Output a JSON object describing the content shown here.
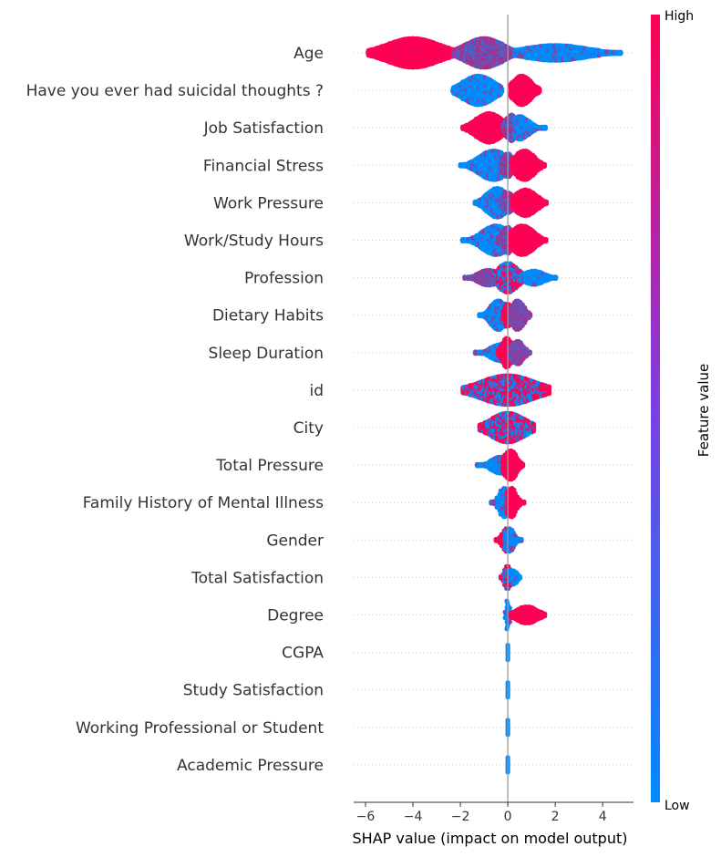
{
  "chart_data": {
    "type": "scatter",
    "subtype": "shap-beeswarm",
    "xlabel": "SHAP value (impact on model output)",
    "xlim": [
      -6.5,
      5.3
    ],
    "xticks": [
      -6,
      -4,
      -2,
      0,
      2,
      4
    ],
    "xtick_labels": [
      "−6",
      "−4",
      "−2",
      "0",
      "2",
      "4"
    ],
    "colorbar": {
      "title": "Feature value",
      "high_label": "High",
      "low_label": "Low",
      "low_color": "#008bfb",
      "high_color": "#ff0052"
    },
    "features": [
      {
        "name": "Age",
        "min": -5.9,
        "max": 4.8,
        "bands": [
          {
            "x0": -5.9,
            "x1": -2.3,
            "c": "high",
            "v": [
              -4.0,
              1.0
            ]
          },
          {
            "x0": -2.3,
            "x1": 0.3,
            "c": "mid",
            "v": [
              -1.0,
              1.0
            ]
          },
          {
            "x0": 0.3,
            "x1": 4.8,
            "c": "low",
            "v": [
              2.0,
              0.55
            ]
          }
        ]
      },
      {
        "name": "Have you ever had suicidal thoughts ?",
        "min": -2.3,
        "max": 1.4,
        "bands": [
          {
            "x0": -2.3,
            "x1": -0.2,
            "c": "low",
            "v": [
              -1.25,
              1.0
            ]
          },
          {
            "x0": 0.1,
            "x1": 1.4,
            "c": "high",
            "v": [
              0.6,
              1.0
            ]
          }
        ]
      },
      {
        "name": "Job Satisfaction",
        "min": -1.9,
        "max": 1.6,
        "bands": [
          {
            "x0": -1.9,
            "x1": -0.1,
            "c": "high",
            "v": [
              -0.8,
              1.0
            ]
          },
          {
            "x0": -0.2,
            "x1": 0.6,
            "c": "mid",
            "v": [
              0.15,
              0.9
            ]
          },
          {
            "x0": 0.3,
            "x1": 1.6,
            "c": "low",
            "v": [
              0.5,
              0.8
            ]
          }
        ]
      },
      {
        "name": "Financial Stress",
        "min": -2.0,
        "max": 1.6,
        "bands": [
          {
            "x0": -2.0,
            "x1": 0.0,
            "c": "low",
            "v": [
              -0.6,
              1.0
            ]
          },
          {
            "x0": -0.3,
            "x1": 0.5,
            "c": "mid",
            "v": [
              0.0,
              0.8
            ]
          },
          {
            "x0": 0.2,
            "x1": 1.6,
            "c": "high",
            "v": [
              0.7,
              1.0
            ]
          }
        ]
      },
      {
        "name": "Work Pressure",
        "min": -1.4,
        "max": 1.7,
        "bands": [
          {
            "x0": -1.4,
            "x1": 0.1,
            "c": "low",
            "v": [
              -0.45,
              1.0
            ]
          },
          {
            "x0": -0.3,
            "x1": 0.5,
            "c": "mid",
            "v": [
              0.0,
              0.7
            ]
          },
          {
            "x0": 0.2,
            "x1": 1.7,
            "c": "high",
            "v": [
              0.75,
              0.9
            ]
          }
        ]
      },
      {
        "name": "Work/Study Hours",
        "min": -1.9,
        "max": 1.7,
        "bands": [
          {
            "x0": -1.9,
            "x1": 0.0,
            "c": "low",
            "v": [
              -0.5,
              1.0
            ]
          },
          {
            "x0": -0.4,
            "x1": 0.4,
            "c": "mid",
            "v": [
              0.0,
              0.9
            ]
          },
          {
            "x0": 0.1,
            "x1": 1.7,
            "c": "high",
            "v": [
              0.6,
              1.0
            ]
          }
        ]
      },
      {
        "name": "Profession",
        "min": -1.8,
        "max": 2.1,
        "bands": [
          {
            "x0": -1.8,
            "x1": -0.3,
            "c": "purple",
            "v": [
              -0.8,
              0.55
            ]
          },
          {
            "x0": -0.6,
            "x1": 0.8,
            "c": "mix",
            "v": [
              0.0,
              1.0
            ]
          },
          {
            "x0": 0.6,
            "x1": 2.1,
            "c": "low",
            "v": [
              1.1,
              0.5
            ]
          }
        ]
      },
      {
        "name": "Dietary Habits",
        "min": -1.2,
        "max": 1.0,
        "bands": [
          {
            "x0": -1.2,
            "x1": -0.1,
            "c": "low",
            "v": [
              -0.4,
              1.0
            ]
          },
          {
            "x0": -0.2,
            "x1": 0.3,
            "c": "high",
            "v": [
              0.0,
              0.8
            ]
          },
          {
            "x0": 0.1,
            "x1": 1.0,
            "c": "purple",
            "v": [
              0.4,
              1.0
            ]
          }
        ]
      },
      {
        "name": "Sleep Duration",
        "min": -1.4,
        "max": 1.0,
        "bands": [
          {
            "x0": -1.4,
            "x1": 0.0,
            "c": "low",
            "v": [
              -0.3,
              0.6
            ]
          },
          {
            "x0": -0.4,
            "x1": 0.3,
            "c": "high",
            "v": [
              -0.05,
              1.0
            ]
          },
          {
            "x0": 0.1,
            "x1": 1.0,
            "c": "purple",
            "v": [
              0.4,
              0.8
            ]
          }
        ]
      },
      {
        "name": "id",
        "min": -1.9,
        "max": 1.8,
        "bands": [
          {
            "x0": -1.9,
            "x1": 1.8,
            "c": "mix",
            "v": [
              0.0,
              1.0
            ]
          }
        ]
      },
      {
        "name": "City",
        "min": -1.2,
        "max": 1.1,
        "bands": [
          {
            "x0": -1.2,
            "x1": 1.1,
            "c": "mix",
            "v": [
              0.0,
              1.0
            ]
          }
        ]
      },
      {
        "name": "Total Pressure",
        "min": -1.3,
        "max": 0.7,
        "bands": [
          {
            "x0": -1.3,
            "x1": 0.0,
            "c": "low",
            "v": [
              -0.3,
              0.6
            ]
          },
          {
            "x0": -0.2,
            "x1": 0.7,
            "c": "high",
            "v": [
              0.1,
              1.0
            ]
          }
        ]
      },
      {
        "name": "Family History of Mental Illness",
        "min": -0.7,
        "max": 0.7,
        "bands": [
          {
            "x0": -0.7,
            "x1": 0.0,
            "c": "low",
            "v": [
              -0.15,
              1.0
            ]
          },
          {
            "x0": 0.0,
            "x1": 0.7,
            "c": "high",
            "v": [
              0.15,
              1.0
            ]
          }
        ]
      },
      {
        "name": "Gender",
        "min": -0.5,
        "max": 0.6,
        "bands": [
          {
            "x0": -0.5,
            "x1": 0.1,
            "c": "high",
            "v": [
              -0.05,
              0.8
            ]
          },
          {
            "x0": -0.1,
            "x1": 0.6,
            "c": "low",
            "v": [
              0.05,
              0.8
            ]
          }
        ]
      },
      {
        "name": "Total Satisfaction",
        "min": -0.3,
        "max": 0.6,
        "bands": [
          {
            "x0": -0.3,
            "x1": 0.2,
            "c": "mix",
            "v": [
              0.0,
              0.8
            ]
          },
          {
            "x0": 0.1,
            "x1": 0.6,
            "c": "low",
            "v": [
              0.25,
              0.5
            ]
          }
        ]
      },
      {
        "name": "Degree",
        "min": -0.1,
        "max": 1.6,
        "bands": [
          {
            "x0": -0.1,
            "x1": 0.1,
            "c": "low",
            "v": [
              0.0,
              1.0
            ]
          },
          {
            "x0": 0.1,
            "x1": 1.6,
            "c": "high",
            "v": [
              0.8,
              0.6
            ]
          }
        ]
      },
      {
        "name": "CGPA",
        "min": -0.05,
        "max": 0.05,
        "bands": [
          {
            "x0": -0.05,
            "x1": 0.05,
            "c": "low",
            "v": [
              0.0,
              1.0
            ]
          }
        ]
      },
      {
        "name": "Study Satisfaction",
        "min": -0.05,
        "max": 0.05,
        "bands": [
          {
            "x0": -0.05,
            "x1": 0.05,
            "c": "low",
            "v": [
              0.0,
              1.0
            ]
          }
        ]
      },
      {
        "name": "Working Professional or Student",
        "min": -0.05,
        "max": 0.05,
        "bands": [
          {
            "x0": -0.05,
            "x1": 0.05,
            "c": "low",
            "v": [
              0.0,
              1.0
            ]
          }
        ]
      },
      {
        "name": "Academic Pressure",
        "min": -0.05,
        "max": 0.05,
        "bands": [
          {
            "x0": -0.05,
            "x1": 0.05,
            "c": "low",
            "v": [
              0.0,
              1.0
            ]
          }
        ]
      }
    ]
  }
}
